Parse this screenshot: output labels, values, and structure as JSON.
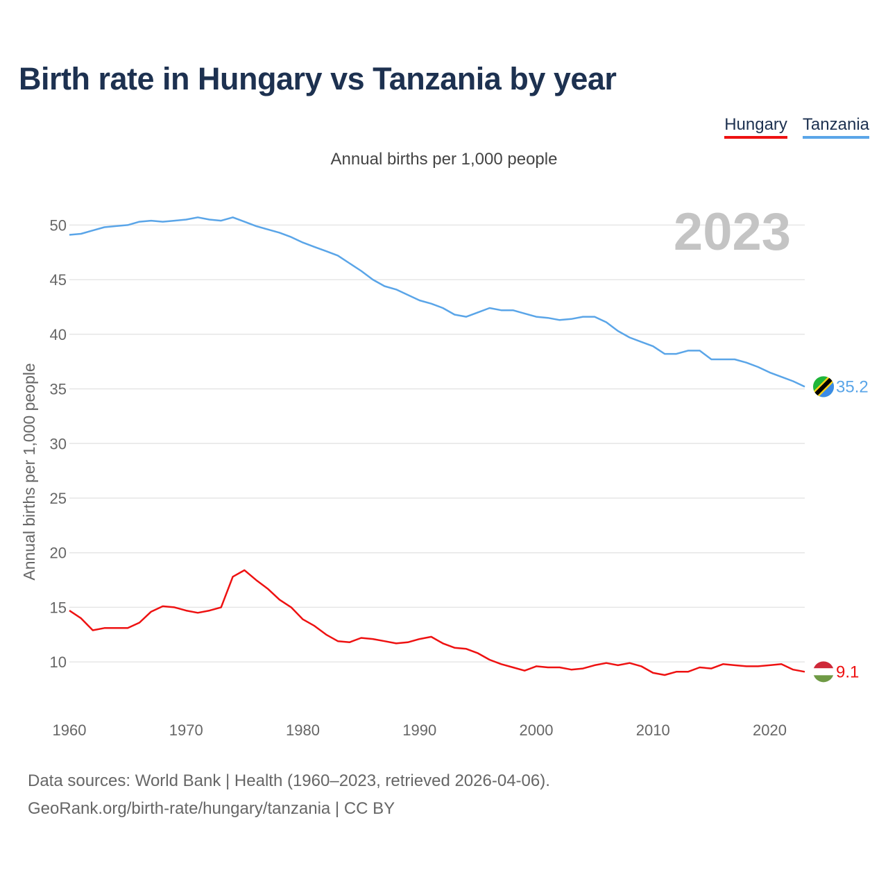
{
  "title": "Birth rate in Hungary vs Tanzania by year",
  "subtitle": "Annual births per 1,000 people",
  "legend": [
    {
      "label": "Hungary",
      "color": "#ee1111"
    },
    {
      "label": "Tanzania",
      "color": "#5aa5e8"
    }
  ],
  "year_watermark": "2023",
  "footer": {
    "line1": "Data sources: World Bank | Health (1960–2023, retrieved 2026-04-06).",
    "line2": "GeoRank.org/birth-rate/hungary/tanzania | CC BY"
  },
  "chart_data": {
    "type": "line",
    "title": "Birth rate in Hungary vs Tanzania by year",
    "xlabel": "",
    "ylabel": "Annual births per 1,000 people",
    "xlim": [
      1960,
      2023
    ],
    "ylim": [
      5.5,
      52.5
    ],
    "xticks": [
      1960,
      1970,
      1980,
      1990,
      2000,
      2010,
      2020
    ],
    "yticks": [
      10,
      15,
      20,
      25,
      30,
      35,
      40,
      45,
      50
    ],
    "grid": true,
    "legend_position": "top-right",
    "x": [
      1960,
      1961,
      1962,
      1963,
      1964,
      1965,
      1966,
      1967,
      1968,
      1969,
      1970,
      1971,
      1972,
      1973,
      1974,
      1975,
      1976,
      1977,
      1978,
      1979,
      1980,
      1981,
      1982,
      1983,
      1984,
      1985,
      1986,
      1987,
      1988,
      1989,
      1990,
      1991,
      1992,
      1993,
      1994,
      1995,
      1996,
      1997,
      1998,
      1999,
      2000,
      2001,
      2002,
      2003,
      2004,
      2005,
      2006,
      2007,
      2008,
      2009,
      2010,
      2011,
      2012,
      2013,
      2014,
      2015,
      2016,
      2017,
      2018,
      2019,
      2020,
      2021,
      2022,
      2023
    ],
    "series": [
      {
        "name": "Hungary",
        "color": "#ee1111",
        "end_label": "9.1",
        "values": [
          14.7,
          14.0,
          12.9,
          13.1,
          13.1,
          13.1,
          13.6,
          14.6,
          15.1,
          15.0,
          14.7,
          14.5,
          14.7,
          15.0,
          17.8,
          18.4,
          17.5,
          16.7,
          15.7,
          15.0,
          13.9,
          13.3,
          12.5,
          11.9,
          11.8,
          12.2,
          12.1,
          11.9,
          11.7,
          11.8,
          12.1,
          12.3,
          11.7,
          11.3,
          11.2,
          10.8,
          10.2,
          9.8,
          9.5,
          9.2,
          9.6,
          9.5,
          9.5,
          9.3,
          9.4,
          9.7,
          9.9,
          9.7,
          9.9,
          9.6,
          9.0,
          8.8,
          9.1,
          9.1,
          9.5,
          9.4,
          9.8,
          9.7,
          9.6,
          9.6,
          9.7,
          9.8,
          9.3,
          9.1
        ]
      },
      {
        "name": "Tanzania",
        "color": "#5aa5e8",
        "end_label": "35.2",
        "values": [
          49.1,
          49.2,
          49.5,
          49.8,
          49.9,
          50.0,
          50.3,
          50.4,
          50.3,
          50.4,
          50.5,
          50.7,
          50.5,
          50.4,
          50.7,
          50.3,
          49.9,
          49.6,
          49.3,
          48.9,
          48.4,
          48.0,
          47.6,
          47.2,
          46.5,
          45.8,
          45.0,
          44.4,
          44.1,
          43.6,
          43.1,
          42.8,
          42.4,
          41.8,
          41.6,
          42.0,
          42.4,
          42.2,
          42.2,
          41.9,
          41.6,
          41.5,
          41.3,
          41.4,
          41.6,
          41.6,
          41.1,
          40.3,
          39.7,
          39.3,
          38.9,
          38.2,
          38.2,
          38.5,
          38.5,
          37.7,
          37.7,
          37.7,
          37.4,
          37.0,
          36.5,
          36.1,
          35.7,
          35.2
        ]
      }
    ]
  }
}
